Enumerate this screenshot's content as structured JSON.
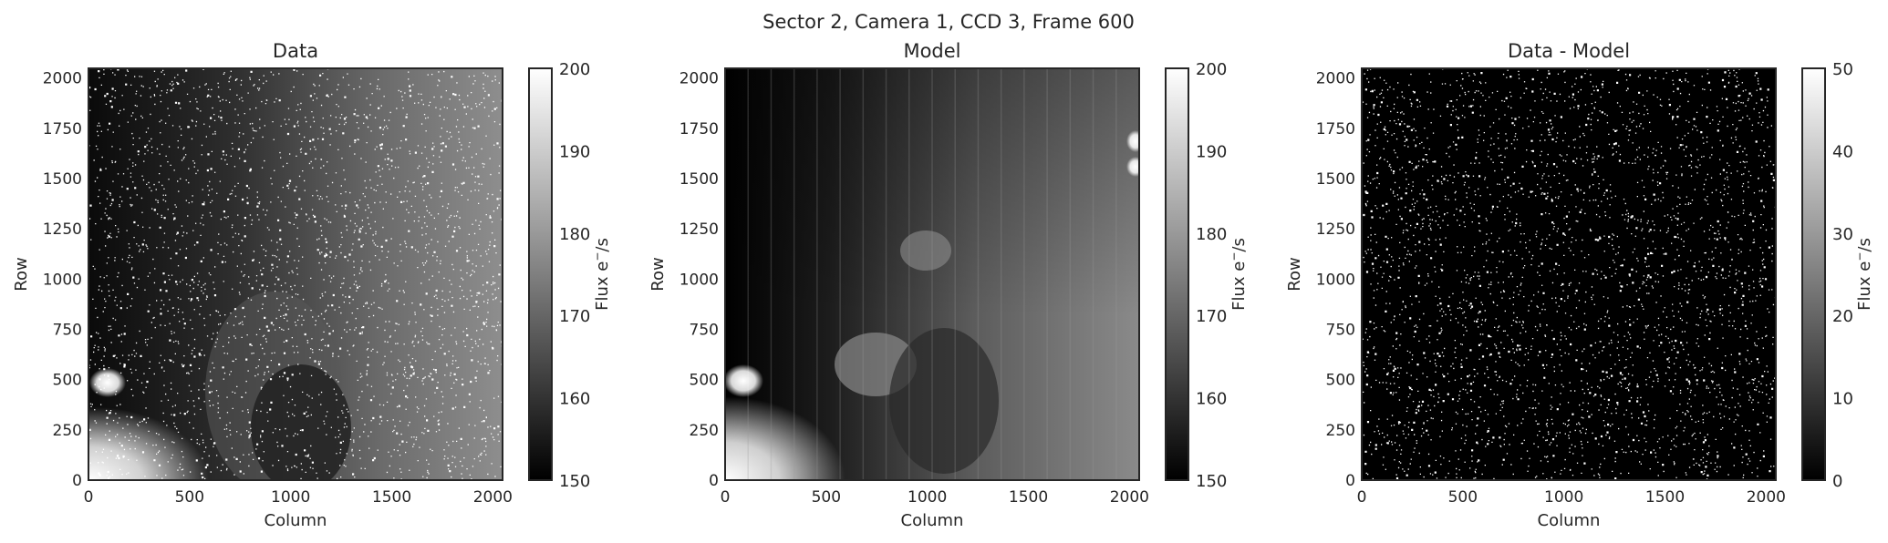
{
  "figure": {
    "suptitle": "Sector 2, Camera 1, CCD 3, Frame 600"
  },
  "chart_data": [
    {
      "type": "heatmap",
      "title": "Data",
      "xlabel": "Column",
      "ylabel": "Row",
      "xlim": [
        0,
        2048
      ],
      "ylim": [
        0,
        2048
      ],
      "xticks": [
        0,
        500,
        1000,
        1500,
        2000
      ],
      "yticks": [
        0,
        250,
        500,
        750,
        1000,
        1250,
        1500,
        1750,
        2000
      ],
      "colormap": "gray",
      "colorbar": {
        "label": "Flux $e^-/s$",
        "label_text": "Flux e",
        "label_sup": "−",
        "label_tail": "/s",
        "range": [
          150,
          200
        ],
        "ticks": [
          150,
          160,
          170,
          180,
          190,
          200
        ]
      }
    },
    {
      "type": "heatmap",
      "title": "Model",
      "xlabel": "Column",
      "ylabel": "Row",
      "xlim": [
        0,
        2048
      ],
      "ylim": [
        0,
        2048
      ],
      "xticks": [
        0,
        500,
        1000,
        1500,
        2000
      ],
      "yticks": [
        0,
        250,
        500,
        750,
        1000,
        1250,
        1500,
        1750,
        2000
      ],
      "colormap": "gray",
      "colorbar": {
        "label": "Flux $e^-/s$",
        "label_text": "Flux e",
        "label_sup": "−",
        "label_tail": "/s",
        "range": [
          150,
          200
        ],
        "ticks": [
          150,
          160,
          170,
          180,
          190,
          200
        ]
      }
    },
    {
      "type": "heatmap",
      "title": "Data - Model",
      "xlabel": "Column",
      "ylabel": "Row",
      "xlim": [
        0,
        2048
      ],
      "ylim": [
        0,
        2048
      ],
      "xticks": [
        0,
        500,
        1000,
        1500,
        2000
      ],
      "yticks": [
        0,
        250,
        500,
        750,
        1000,
        1250,
        1500,
        1750,
        2000
      ],
      "colormap": "gray",
      "colorbar": {
        "label": "Flux $e^-/s$",
        "label_text": "Flux e",
        "label_sup": "−",
        "label_tail": "/s",
        "range": [
          0,
          50
        ],
        "ticks": [
          0,
          10,
          20,
          30,
          40,
          50
        ]
      }
    }
  ]
}
